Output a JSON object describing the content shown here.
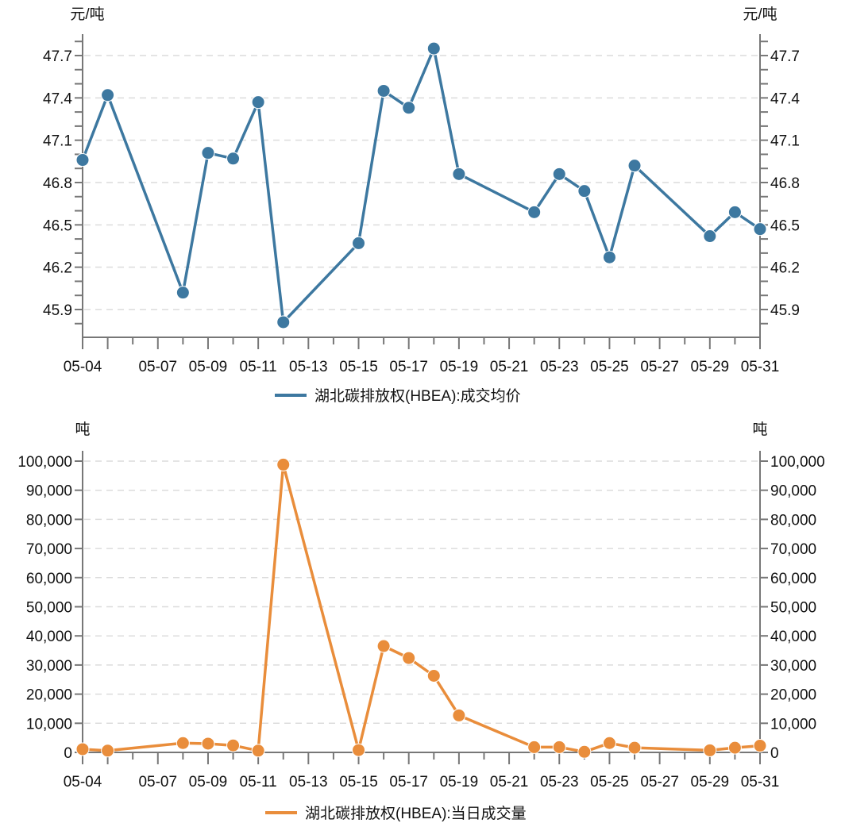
{
  "colors": {
    "price": "#3d78a0",
    "volume": "#e98d3b",
    "axis": "#777777",
    "grid": "#dcdcdc"
  },
  "chart_data": [
    {
      "type": "line",
      "title": "",
      "ylabel_left": "元/吨",
      "ylabel_right": "元/吨",
      "xlabel": "",
      "legend": "湖北碳排放权(HBEA):成交均价",
      "legend_position": "bottom-center",
      "grid": true,
      "x_ticks": [
        "05-04",
        "",
        "05-07",
        "05-09",
        "05-11",
        "05-13",
        "05-15",
        "05-17",
        "05-19",
        "05-21",
        "05-23",
        "05-25",
        "05-27",
        "05-29",
        "05-31"
      ],
      "x_tick_days": [
        4,
        5,
        7,
        9,
        11,
        13,
        15,
        17,
        19,
        21,
        23,
        25,
        27,
        29,
        31
      ],
      "x_range_days": [
        4,
        31
      ],
      "y_ticks": [
        "47.7",
        "47.4",
        "47.1",
        "46.8",
        "46.5",
        "46.2",
        "45.9"
      ],
      "y_tick_values": [
        47.7,
        47.4,
        47.1,
        46.8,
        46.5,
        46.2,
        45.9
      ],
      "y_minor_step": 0.1,
      "ylim": [
        45.703,
        47.852
      ],
      "series": [
        {
          "name": "湖北碳排放权(HBEA):成交均价",
          "x": [
            "05-04",
            "05-05",
            "05-08",
            "05-09",
            "05-10",
            "05-11",
            "05-12",
            "05-15",
            "05-16",
            "05-17",
            "05-18",
            "05-19",
            "05-22",
            "05-23",
            "05-24",
            "05-25",
            "05-26",
            "05-29",
            "05-30",
            "05-31"
          ],
          "days": [
            4,
            5,
            8,
            9,
            10,
            11,
            12,
            15,
            16,
            17,
            18,
            19,
            22,
            23,
            24,
            25,
            26,
            29,
            30,
            31
          ],
          "values": [
            46.96,
            47.42,
            46.02,
            47.01,
            46.97,
            47.37,
            45.81,
            46.37,
            47.45,
            47.33,
            47.75,
            46.86,
            46.59,
            46.86,
            46.74,
            46.27,
            46.92,
            46.42,
            46.59,
            46.47
          ]
        }
      ]
    },
    {
      "type": "line",
      "title": "",
      "ylabel_left": "吨",
      "ylabel_right": "吨",
      "xlabel": "",
      "legend": "湖北碳排放权(HBEA):当日成交量",
      "legend_position": "bottom-center",
      "grid": true,
      "x_ticks": [
        "05-04",
        "",
        "05-07",
        "05-09",
        "05-11",
        "05-13",
        "05-15",
        "05-17",
        "05-19",
        "05-21",
        "05-23",
        "05-25",
        "05-27",
        "05-29",
        "05-31"
      ],
      "x_tick_days": [
        4,
        5,
        7,
        9,
        11,
        13,
        15,
        17,
        19,
        21,
        23,
        25,
        27,
        29,
        31
      ],
      "x_range_days": [
        4,
        31
      ],
      "y_ticks": [
        "100,000",
        "90,000",
        "80,000",
        "70,000",
        "60,000",
        "50,000",
        "40,000",
        "30,000",
        "20,000",
        "10,000",
        "0"
      ],
      "y_tick_values": [
        100000,
        90000,
        80000,
        70000,
        60000,
        50000,
        40000,
        30000,
        20000,
        10000,
        0
      ],
      "ylim": [
        0,
        103540
      ],
      "series": [
        {
          "name": "湖北碳排放权(HBEA):当日成交量",
          "x": [
            "05-04",
            "05-05",
            "05-08",
            "05-09",
            "05-10",
            "05-11",
            "05-12",
            "05-15",
            "05-16",
            "05-17",
            "05-18",
            "05-19",
            "05-22",
            "05-23",
            "05-24",
            "05-25",
            "05-26",
            "05-29",
            "05-30",
            "05-31"
          ],
          "days": [
            4,
            5,
            8,
            9,
            10,
            11,
            12,
            15,
            16,
            17,
            18,
            19,
            22,
            23,
            24,
            25,
            26,
            29,
            30,
            31
          ],
          "values": [
            1100,
            600,
            3200,
            3000,
            2400,
            600,
            98800,
            800,
            36500,
            32400,
            26300,
            12700,
            1800,
            1800,
            200,
            3200,
            1600,
            700,
            1600,
            2300
          ]
        }
      ]
    }
  ]
}
